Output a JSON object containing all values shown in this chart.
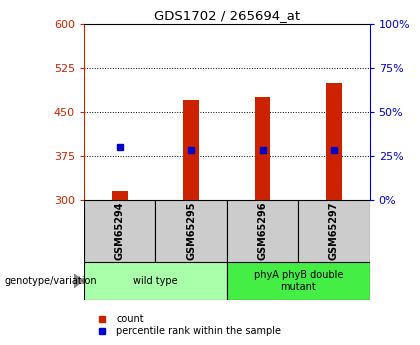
{
  "title": "GDS1702 / 265694_at",
  "samples": [
    "GSM65294",
    "GSM65295",
    "GSM65296",
    "GSM65297"
  ],
  "count_values": [
    315,
    470,
    475,
    500
  ],
  "percentile_values": [
    390,
    385,
    385,
    385
  ],
  "ylim_left": [
    300,
    600
  ],
  "ylim_right": [
    0,
    100
  ],
  "yticks_left": [
    300,
    375,
    450,
    525,
    600
  ],
  "yticks_right": [
    0,
    25,
    50,
    75,
    100
  ],
  "groups": [
    {
      "label": "wild type",
      "indices": [
        0,
        1
      ],
      "color": "#aaffaa"
    },
    {
      "label": "phyA phyB double\nmutant",
      "indices": [
        2,
        3
      ],
      "color": "#44ee44"
    }
  ],
  "bar_color": "#cc2200",
  "dot_color": "#0000cc",
  "bar_bottom": 300,
  "left_axis_color": "#cc2200",
  "right_axis_color": "#0000cc",
  "background_color": "#ffffff",
  "genotype_label": "genotype/variation",
  "legend_count": "count",
  "legend_pct": "percentile rank within the sample"
}
